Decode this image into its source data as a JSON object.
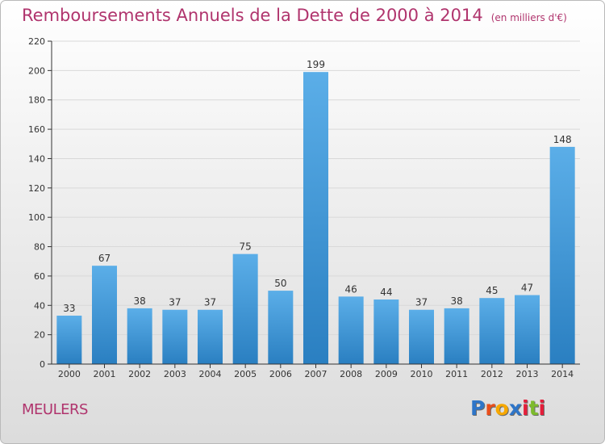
{
  "header": {
    "title": "Remboursements Annuels de la Dette de 2000 à 2014",
    "unit_note": "(en milliers d'€)"
  },
  "footer": {
    "town": "MEULERS",
    "brand": "Proxiti",
    "brand_colors": [
      "#2e75c8",
      "#e94e1b",
      "#f7a800",
      "#2e75c8",
      "#e41e3a",
      "#7dbb2c",
      "#e41e3a"
    ]
  },
  "colors": {
    "title": "#b0346d",
    "bar_light": "#5baee8",
    "bar_dark": "#2a7fc1",
    "grid": "#d9d9d9",
    "axis": "#333333"
  },
  "chart_data": {
    "type": "bar",
    "categories": [
      "2000",
      "2001",
      "2002",
      "2003",
      "2004",
      "2005",
      "2006",
      "2007",
      "2008",
      "2009",
      "2010",
      "2011",
      "2012",
      "2013",
      "2014"
    ],
    "values": [
      33,
      67,
      38,
      37,
      37,
      75,
      50,
      199,
      46,
      44,
      37,
      38,
      45,
      47,
      148
    ],
    "ylim": [
      0,
      220
    ],
    "yticks": [
      0,
      20,
      40,
      60,
      80,
      100,
      120,
      140,
      160,
      180,
      200,
      220
    ],
    "grid": true,
    "data_labels": true
  }
}
